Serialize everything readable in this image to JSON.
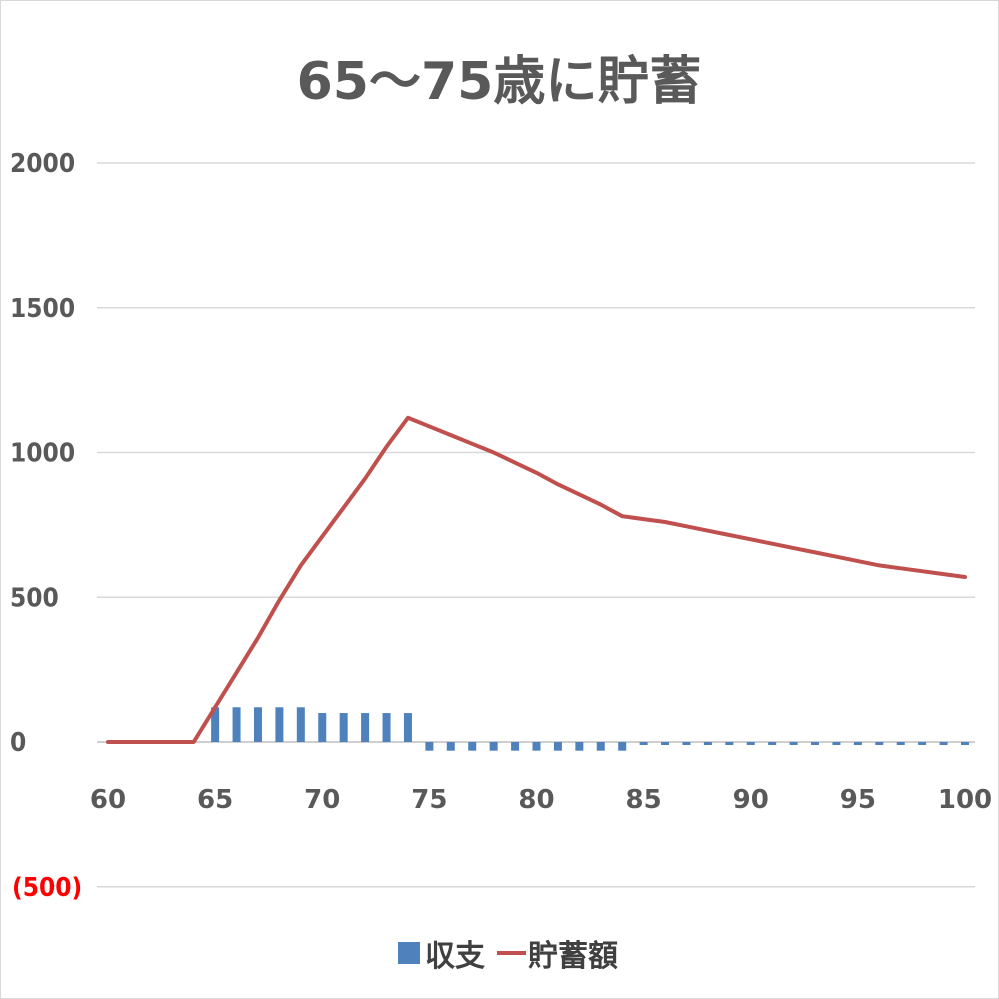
{
  "chart_data": {
    "type": "bar+line",
    "title": "65～75歳に貯蓄",
    "y_ticks": [
      {
        "value": 2000,
        "label": "2000"
      },
      {
        "value": 1500,
        "label": "1500"
      },
      {
        "value": 1000,
        "label": "1000"
      },
      {
        "value": 500,
        "label": "500"
      },
      {
        "value": 0,
        "label": "0"
      },
      {
        "value": -500,
        "label": "(500)",
        "color": "#ff0000"
      }
    ],
    "ylim": [
      -500,
      2000
    ],
    "xlim": [
      60,
      100
    ],
    "x_ticks": [
      60,
      65,
      70,
      75,
      80,
      85,
      90,
      95,
      100
    ],
    "grid": true,
    "legend_position": "bottom",
    "x": [
      60,
      61,
      62,
      63,
      64,
      65,
      66,
      67,
      68,
      69,
      70,
      71,
      72,
      73,
      74,
      75,
      76,
      77,
      78,
      79,
      80,
      81,
      82,
      83,
      84,
      85,
      86,
      87,
      88,
      89,
      90,
      91,
      92,
      93,
      94,
      95,
      96,
      97,
      98,
      99,
      100
    ],
    "series": [
      {
        "name": "収支",
        "kind": "bar",
        "color": "#4f81bd",
        "values": [
          0,
          0,
          0,
          0,
          0,
          120,
          120,
          120,
          120,
          120,
          100,
          100,
          100,
          100,
          100,
          -30,
          -30,
          -30,
          -30,
          -30,
          -30,
          -30,
          -30,
          -30,
          -30,
          -10,
          -10,
          -10,
          -10,
          -10,
          -10,
          -10,
          -10,
          -10,
          -10,
          -10,
          -10,
          -10,
          -10,
          -10,
          -10
        ]
      },
      {
        "name": "貯蓄額",
        "kind": "line",
        "color": "#c0504d",
        "values": [
          0,
          0,
          0,
          0,
          0,
          120,
          240,
          360,
          490,
          610,
          710,
          810,
          910,
          1020,
          1120,
          1090,
          1060,
          1030,
          1000,
          965,
          930,
          890,
          855,
          820,
          780,
          770,
          760,
          745,
          730,
          715,
          700,
          685,
          670,
          655,
          640,
          625,
          610,
          600,
          590,
          580,
          570
        ]
      }
    ]
  }
}
